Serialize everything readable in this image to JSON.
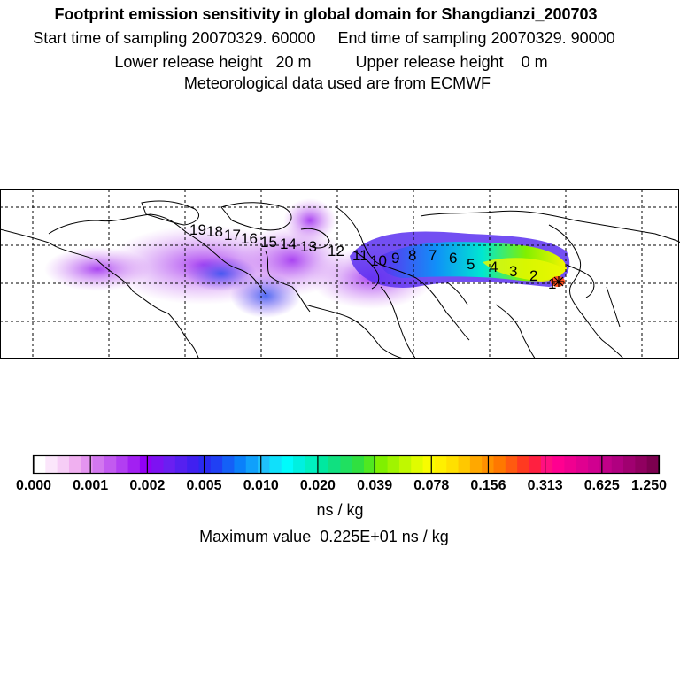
{
  "title": {
    "line1": "Footprint emission sensitivity in global domain for Shangdianzi_200703",
    "line2": "Start time of sampling 20070329. 60000     End time of sampling 20070329. 90000",
    "line3": "Lower release height   20 m          Upper release height    0 m",
    "line4": "Meteorological data used are from ECMWF"
  },
  "colorbar": {
    "tick_labels": [
      "0.000",
      "0.001",
      "0.002",
      "0.005",
      "0.010",
      "0.020",
      "0.039",
      "0.078",
      "0.156",
      "0.313",
      "0.625",
      "1.250"
    ],
    "colors": [
      "#ffffff",
      "#fbe6fb",
      "#f6cdf6",
      "#f0b0f0",
      "#e494f0",
      "#d277ef",
      "#c25af0",
      "#b23ef2",
      "#a220f2",
      "#9200f5",
      "#7d12f2",
      "#6a1ff1",
      "#5520f0",
      "#4020f0",
      "#2a2af0",
      "#2040f4",
      "#1460f7",
      "#0a80fa",
      "#10a0fb",
      "#20c0fb",
      "#10e0fb",
      "#00fbfb",
      "#00f0e0",
      "#00f0c0",
      "#00e8a0",
      "#10e080",
      "#20e060",
      "#30e040",
      "#50e820",
      "#80f000",
      "#a0f400",
      "#c0f800",
      "#e0fc00",
      "#f8fc00",
      "#fff000",
      "#ffe000",
      "#ffc800",
      "#ffa800",
      "#ff9000",
      "#ff7800",
      "#ff5a10",
      "#ff3a20",
      "#ff2040",
      "#ff1080",
      "#ff0090",
      "#f00090",
      "#e00090",
      "#d00090",
      "#c00088",
      "#b00080",
      "#a00070",
      "#900060",
      "#7c0050"
    ],
    "units": "ns / kg",
    "max_value": "Maximum value  0.225E+01 ns / kg"
  },
  "map": {
    "receptor": "Shangdianzi",
    "trajectory_labels": [
      "1",
      "2",
      "3",
      "4",
      "5",
      "6",
      "7",
      "8",
      "9",
      "10",
      "11",
      "12",
      "13",
      "14",
      "15",
      "16",
      "17",
      "18",
      "19"
    ]
  }
}
